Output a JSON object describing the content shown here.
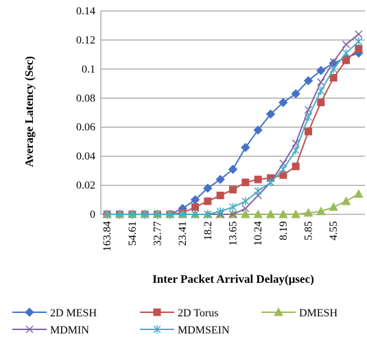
{
  "chart_data": {
    "type": "line",
    "title": "",
    "xlabel": "Inter Packet Arrival Delay(µsec)",
    "ylabel": "Average Latency (Sec)",
    "ylim": [
      0,
      0.14
    ],
    "yticks": [
      "0",
      "0.02",
      "0.04",
      "0.06",
      "0.08",
      "0.1",
      "0.12",
      "0.14"
    ],
    "x_tick_labels": [
      "163.84",
      "54.61",
      "32.77",
      "23.41",
      "18.2",
      "13.65",
      "10.24",
      "8.19",
      "5.85",
      "4.55"
    ],
    "grid": "horizontal",
    "legend_position": "bottom",
    "series": [
      {
        "name": "2D MESH",
        "color": "#4472C4",
        "marker": "diamond",
        "values": [
          0,
          0,
          0,
          0,
          0,
          0,
          0.004,
          0.01,
          0.018,
          0.024,
          0.031,
          0.046,
          0.058,
          0.069,
          0.077,
          0.083,
          0.092,
          0.099,
          0.104,
          0.108,
          0.111
        ]
      },
      {
        "name": "2D Torus",
        "color": "#C0504D",
        "marker": "square",
        "values": [
          0,
          0,
          0,
          0,
          0,
          0,
          0.001,
          0.005,
          0.009,
          0.013,
          0.017,
          0.022,
          0.024,
          0.025,
          0.027,
          0.033,
          0.057,
          0.077,
          0.094,
          0.106,
          0.114
        ]
      },
      {
        "name": "DMESH",
        "color": "#9BBB59",
        "marker": "triangle",
        "values": [
          0,
          0,
          0,
          0,
          0,
          0,
          0,
          0,
          0,
          0,
          0,
          0,
          0,
          0,
          0,
          0,
          0.001,
          0.002,
          0.005,
          0.009,
          0.014
        ]
      },
      {
        "name": "MDMIN",
        "color": "#8064A2",
        "marker": "x",
        "values": [
          0,
          0,
          0,
          0,
          0,
          0,
          0,
          0,
          0,
          0,
          0,
          0.004,
          0.013,
          0.022,
          0.035,
          0.049,
          0.072,
          0.091,
          0.105,
          0.117,
          0.124
        ]
      },
      {
        "name": "MDMSEIN",
        "color": "#4BACC6",
        "marker": "star",
        "values": [
          0,
          0,
          0,
          0,
          0,
          0,
          0,
          0,
          0,
          0.002,
          0.005,
          0.009,
          0.016,
          0.022,
          0.031,
          0.044,
          0.067,
          0.085,
          0.1,
          0.111,
          0.119
        ]
      }
    ]
  }
}
